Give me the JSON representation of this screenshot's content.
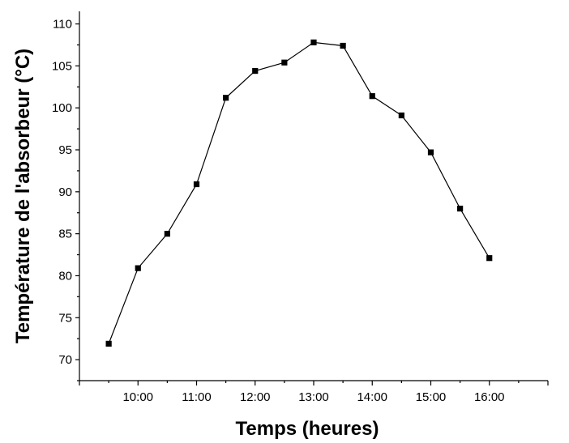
{
  "chart_data": {
    "type": "line",
    "title": "",
    "xlabel": "Temps (heures)",
    "ylabel": "Température de l'absorbeur (°C)",
    "x_unit": "time of day",
    "x_tick_labels": [
      "10:00",
      "11:00",
      "12:00",
      "13:00",
      "14:00",
      "15:00",
      "16:00"
    ],
    "y_tick_labels": [
      "70",
      "75",
      "80",
      "85",
      "90",
      "95",
      "100",
      "105",
      "110"
    ],
    "xlim": [
      "09:00",
      "17:00"
    ],
    "ylim": [
      67.5,
      111.5
    ],
    "grid": false,
    "legend": "none",
    "marker": "square",
    "color": "#000000",
    "series": [
      {
        "x": [
          "09:30",
          "10:00",
          "10:30",
          "11:00",
          "11:30",
          "12:00",
          "12:30",
          "13:00",
          "13:30",
          "14:00",
          "14:30",
          "15:00",
          "15:30",
          "16:00"
        ],
        "y": [
          71.9,
          80.9,
          85.0,
          90.9,
          101.2,
          104.4,
          105.4,
          107.8,
          107.4,
          101.4,
          99.1,
          94.7,
          88.0,
          82.1
        ]
      }
    ]
  }
}
